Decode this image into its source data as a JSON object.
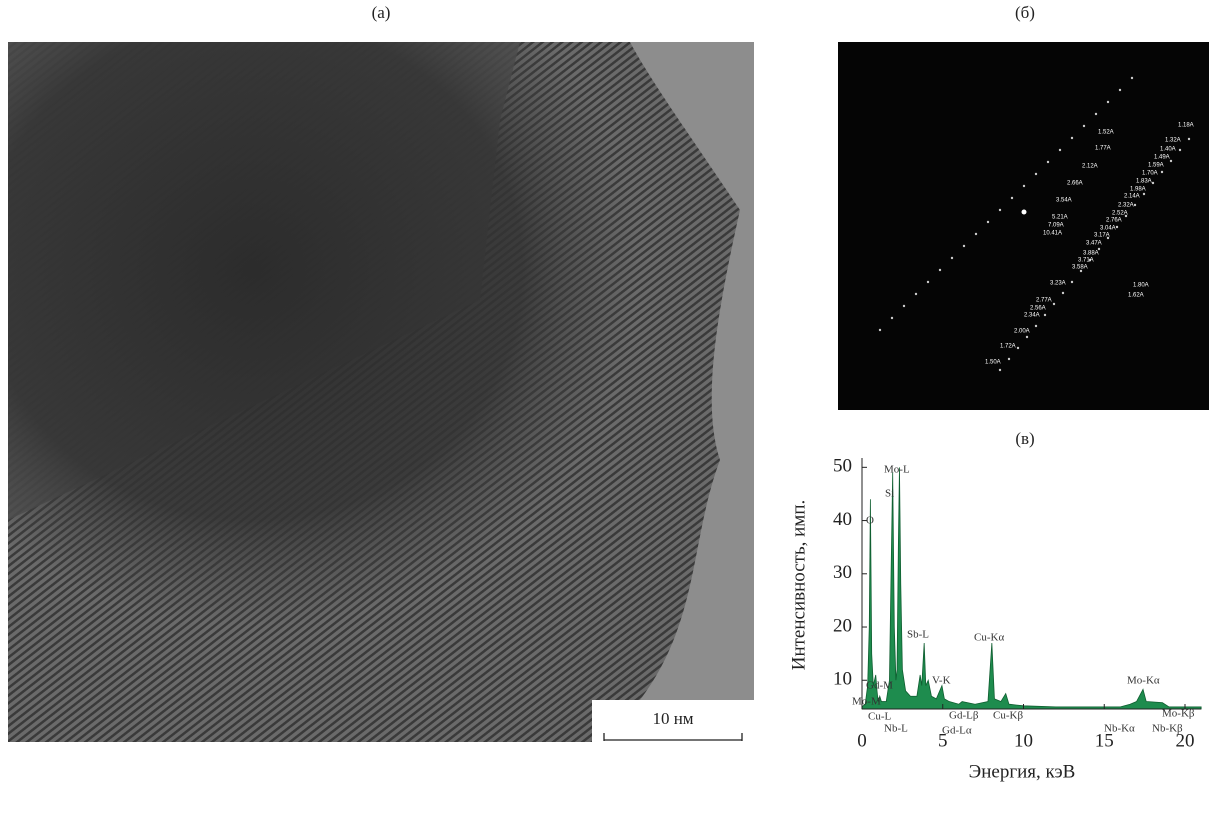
{
  "figure": {
    "labels": [
      "(а)",
      "(б)",
      "(в)"
    ],
    "scale_bar": "10 нм",
    "fft_labels": [
      "1.52A",
      "1.77A",
      "2.12A",
      "2.66A",
      "3.54A",
      "5.21A",
      "7.09A",
      "10.41A",
      "1.18A",
      "1.32A",
      "1.40A",
      "1.49A",
      "1.59A",
      "1.70A",
      "1.83A",
      "1.98A",
      "2.14A",
      "2.32A",
      "2.52A",
      "2.76A",
      "3.04A",
      "3.17A",
      "3.47A",
      "3.88A",
      "3.71A",
      "3.58A",
      "3.23A",
      "2.77A",
      "2.56A",
      "2.34A",
      "2.00A",
      "1.72A",
      "1.50A",
      "1.80A",
      "1.62A"
    ]
  },
  "chart_data": {
    "type": "area",
    "xlabel": "Энергия, кэВ",
    "ylabel": "Интенсивность, имп.",
    "color": "#1e8c4e",
    "x": [
      0,
      0.2,
      0.35,
      0.45,
      0.52,
      0.6,
      0.7,
      0.85,
      0.93,
      1.0,
      1.1,
      1.2,
      1.5,
      1.7,
      1.8,
      1.9,
      2.0,
      2.1,
      2.17,
      2.25,
      2.32,
      2.4,
      2.5,
      2.7,
      3.0,
      3.4,
      3.6,
      3.7,
      3.85,
      3.95,
      4.1,
      4.3,
      4.6,
      4.95,
      5.1,
      5.4,
      6.0,
      6.2,
      7.0,
      7.8,
      8.04,
      8.2,
      8.6,
      8.9,
      9.1,
      10,
      12,
      14,
      16,
      16.6,
      17.0,
      17.4,
      17.6,
      18.6,
      19,
      20,
      21
    ],
    "values": [
      5,
      5.5,
      9,
      20,
      44,
      15,
      9,
      11,
      8,
      6,
      7,
      6,
      6,
      10,
      30,
      49,
      20,
      10,
      12,
      35,
      50,
      28,
      12,
      8,
      7,
      7,
      11,
      9,
      17,
      9,
      10,
      7,
      6.5,
      9,
      6.5,
      6,
      5.5,
      6,
      5.5,
      6,
      17,
      6.5,
      6,
      7.5,
      5.5,
      5.2,
      5,
      5,
      5,
      5.5,
      6,
      8.3,
      6,
      5.8,
      5,
      5,
      5
    ],
    "xlim": [
      0,
      21
    ],
    "ylim": [
      4.6,
      51
    ],
    "xticks": [
      0,
      5,
      10,
      15,
      20
    ],
    "yticks": [
      10,
      20,
      30,
      40,
      50
    ],
    "annotations": [
      "Mo-L",
      "Si",
      "O",
      "Sb-L",
      "Cu-Kα",
      "V-K",
      "Gd-M",
      "Mo-M",
      "Cu-L",
      "Nb-L",
      "Gd-Lβ",
      "Gd-Lα",
      "Cu-Kβ",
      "Mo-Kα",
      "Mo-Kβ",
      "Nb-Kα",
      "Nb-Kβ"
    ]
  }
}
